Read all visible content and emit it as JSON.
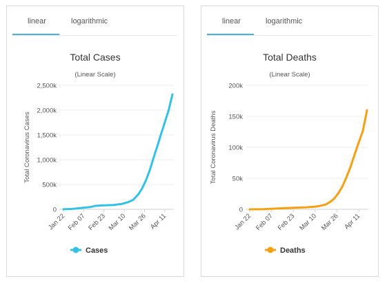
{
  "tabs": {
    "linear": "linear",
    "log": "logarithmic"
  },
  "chart_data": [
    {
      "type": "line",
      "title": "Total Cases",
      "subtitle": "(Linear Scale)",
      "ylabel": "Total Coronavirus Cases",
      "xlabel": "",
      "x_ticks": [
        "Jan 22",
        "Feb 07",
        "Feb 23",
        "Mar 10",
        "Mar 26",
        "Apr 11"
      ],
      "y_ticks": [
        "0",
        "500k",
        "1,000k",
        "1,500k",
        "2,000k",
        "2,500k"
      ],
      "ylim": [
        0,
        2500000
      ],
      "xlim": [
        "Jan 22",
        "Apr 17"
      ],
      "grid": true,
      "legend_position": "bottom",
      "color": "#33c1e6",
      "series": [
        {
          "name": "Cases",
          "x": [
            "Jan 22",
            "Jan 29",
            "Feb 05",
            "Feb 12",
            "Feb 16",
            "Feb 23",
            "Mar 01",
            "Mar 08",
            "Mar 13",
            "Mar 17",
            "Mar 21",
            "Mar 24",
            "Mar 27",
            "Mar 30",
            "Apr 02",
            "Apr 05",
            "Apr 08",
            "Apr 11",
            "Apr 14",
            "Apr 17"
          ],
          "values": [
            1000,
            8000,
            28000,
            45000,
            70000,
            80000,
            88000,
            108000,
            145000,
            190000,
            300000,
            420000,
            580000,
            780000,
            1030000,
            1270000,
            1520000,
            1760000,
            2000000,
            2320000
          ]
        }
      ]
    },
    {
      "type": "line",
      "title": "Total Deaths",
      "subtitle": "(Linear Scale)",
      "ylabel": "Total Coronavirus Deaths",
      "xlabel": "",
      "x_ticks": [
        "Jan 22",
        "Feb 07",
        "Feb 23",
        "Mar 10",
        "Mar 26",
        "Apr 11"
      ],
      "y_ticks": [
        "0",
        "50k",
        "100k",
        "150k",
        "200k"
      ],
      "ylim": [
        0,
        200000
      ],
      "xlim": [
        "Jan 22",
        "Apr 17"
      ],
      "grid": true,
      "legend_position": "bottom",
      "color": "#f5a011",
      "series": [
        {
          "name": "Deaths",
          "x": [
            "Jan 22",
            "Feb 01",
            "Feb 12",
            "Feb 23",
            "Mar 03",
            "Mar 10",
            "Mar 14",
            "Mar 18",
            "Mar 21",
            "Mar 24",
            "Mar 27",
            "Mar 30",
            "Apr 02",
            "Apr 05",
            "Apr 08",
            "Apr 11",
            "Apr 14",
            "Apr 17"
          ],
          "values": [
            17,
            300,
            1300,
            2600,
            3200,
            4300,
            5800,
            8000,
            12000,
            17500,
            26000,
            37000,
            52000,
            69000,
            89000,
            108000,
            127000,
            160000
          ]
        }
      ]
    }
  ]
}
